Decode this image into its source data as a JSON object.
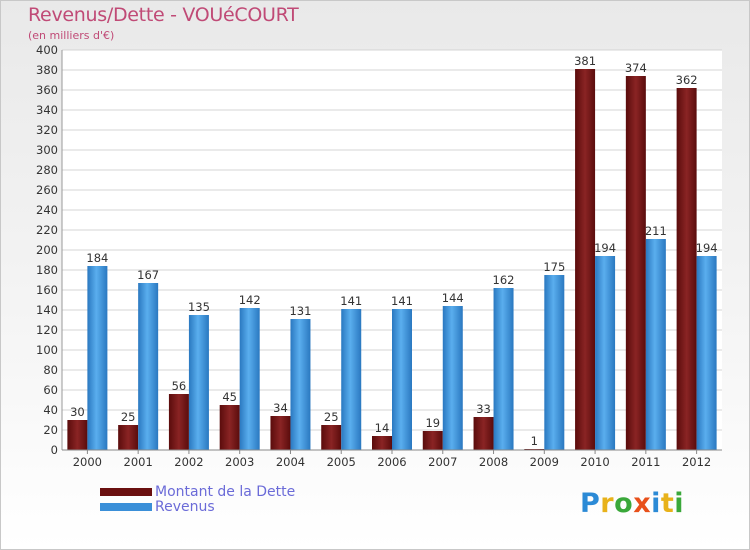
{
  "colors": {
    "dette": "#7a1a1a",
    "revenus": "#3a8fd8",
    "title": "#c04a76",
    "legend_text": "#6b6bd8"
  },
  "chart_data": {
    "type": "bar",
    "title": "Revenus/Dette - VOUéCOURT",
    "subtitle": "(en milliers d'€)",
    "categories": [
      "2000",
      "2001",
      "2002",
      "2003",
      "2004",
      "2005",
      "2006",
      "2007",
      "2008",
      "2009",
      "2010",
      "2011",
      "2012"
    ],
    "series": [
      {
        "name": "Montant de la Dette",
        "values": [
          30,
          25,
          56,
          45,
          34,
          25,
          14,
          19,
          33,
          1,
          381,
          374,
          362
        ]
      },
      {
        "name": "Revenus",
        "values": [
          184,
          167,
          135,
          142,
          131,
          141,
          141,
          144,
          162,
          175,
          194,
          211,
          194
        ]
      }
    ],
    "ylim": [
      0,
      400
    ],
    "yticks": [
      0,
      20,
      40,
      60,
      80,
      100,
      120,
      140,
      160,
      180,
      200,
      220,
      240,
      260,
      280,
      300,
      320,
      340,
      360,
      380,
      400
    ],
    "grid": true,
    "legend_position": "bottom-left"
  },
  "logo": {
    "letters": [
      "P",
      "r",
      "o",
      "x",
      "i",
      "t",
      "i"
    ],
    "colors": [
      "#2b8ad6",
      "#e8b21a",
      "#3aa83a",
      "#e8501a",
      "#2b8ad6",
      "#e8b21a",
      "#3aa83a"
    ]
  }
}
